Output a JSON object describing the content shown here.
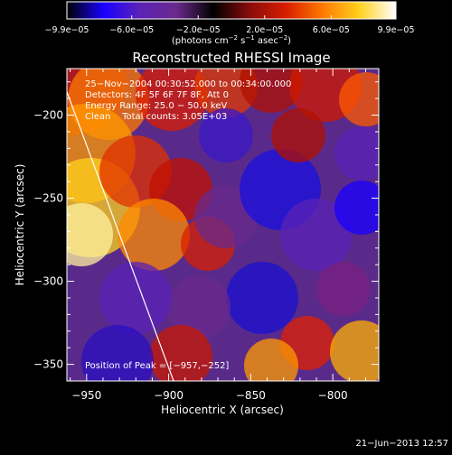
{
  "chart_data": {
    "type": "heatmap",
    "title": "Reconstructed RHESSI Image",
    "xlabel": "Heliocentric X (arcsec)",
    "ylabel": "Heliocentric Y (arcsec)",
    "xlim": [
      -962,
      -772
    ],
    "ylim": [
      -360,
      -172
    ],
    "x_ticks": [
      -950,
      -900,
      -850,
      -800
    ],
    "x_tick_labels": [
      "−950",
      "−900",
      "−850",
      "−800"
    ],
    "y_ticks": [
      -200,
      -250,
      -300,
      -350
    ],
    "y_tick_labels": [
      "−200",
      "−250",
      "−300",
      "−350"
    ],
    "colorbar": {
      "min": -9.9e-05,
      "max": 9.9e-05,
      "ticks": [
        -9.9e-05,
        -6e-05,
        -2e-05,
        2e-05,
        6e-05,
        9.9e-05
      ],
      "tick_labels": [
        "−9.9e−05",
        "−6.0e−05",
        "−2.0e−05",
        "2.0e−05",
        "6.0e−05",
        "9.9e−05"
      ],
      "units_text": "(photons cm",
      "units_exp1": "−2",
      "units_mid": " s",
      "units_exp2": "−1",
      "units_mid2": " asec",
      "units_exp3": "−2",
      "units_end": ")"
    },
    "annotations": {
      "time_range": "25−Nov−2004 00:30:52.000 to 00:34:00.000",
      "detectors": "Detectors: 4F 5F 6F 7F 8F, Att 0",
      "energy": "Energy Range: 25.0 − 50.0 keV",
      "method": "Clean    Total counts: 3.05E+03",
      "peak": "Position of Peak = [−957,−252]"
    },
    "limb_line": [
      [
        -962,
        -186
      ],
      [
        -897,
        -360
      ]
    ],
    "colormap": [
      "#000000",
      "#1a00ff",
      "#5b22b6",
      "#6a2a8c",
      "#000000",
      "#8a0c0c",
      "#d81e00",
      "#ff7a00",
      "#ffd21e",
      "#ffffff"
    ],
    "grid": false
  },
  "footer": {
    "timestamp": "21−Jun−2013 12:57"
  }
}
